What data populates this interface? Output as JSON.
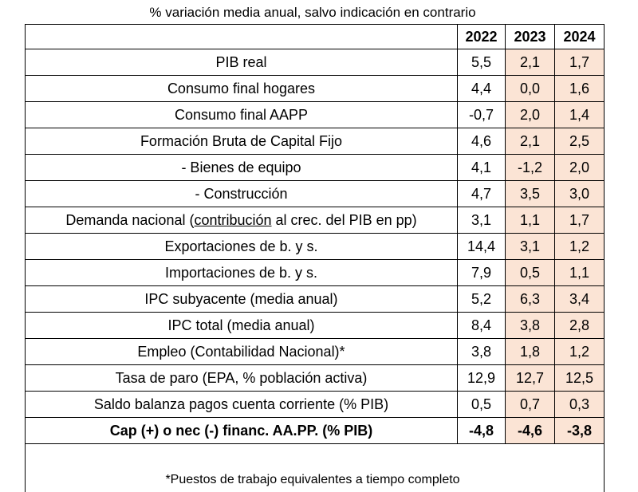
{
  "caption": "% variación media anual, salvo indicación en contrario",
  "columns": [
    "2022",
    "2023",
    "2024"
  ],
  "rows": [
    {
      "label": "PIB real",
      "values": [
        "5,5",
        "2,1",
        "1,7"
      ]
    },
    {
      "label": "Consumo final hogares",
      "values": [
        "4,4",
        "0,0",
        "1,6"
      ]
    },
    {
      "label": "Consumo final AAPP",
      "values": [
        "-0,7",
        "2,0",
        "1,4"
      ]
    },
    {
      "label": "Formación Bruta de Capital Fijo",
      "values": [
        "4,6",
        "2,1",
        "2,5"
      ]
    },
    {
      "label": "- Bienes de equipo",
      "values": [
        "4,1",
        "-1,2",
        "2,0"
      ]
    },
    {
      "label": "- Construcción",
      "values": [
        "4,7",
        "3,5",
        "3,0"
      ]
    },
    {
      "label_prefix": "Demanda nacional (",
      "label_underlined": "contribución",
      "label_suffix": " al crec. del PIB en pp)",
      "values": [
        "3,1",
        "1,1",
        "1,7"
      ]
    },
    {
      "label": "Exportaciones de b. y s.",
      "values": [
        "14,4",
        "3,1",
        "1,2"
      ]
    },
    {
      "label": "Importaciones de b. y s.",
      "values": [
        "7,9",
        "0,5",
        "1,1"
      ]
    },
    {
      "label": "IPC subyacente (media anual)",
      "values": [
        "5,2",
        "6,3",
        "3,4"
      ]
    },
    {
      "label": "IPC total (media anual)",
      "values": [
        "8,4",
        "3,8",
        "2,8"
      ]
    },
    {
      "label": "Empleo (Contabilidad Nacional)*",
      "values": [
        "3,8",
        "1,8",
        "1,2"
      ]
    },
    {
      "label": "Tasa de paro (EPA, % población activa)",
      "values": [
        "12,9",
        "12,7",
        "12,5"
      ]
    },
    {
      "label": "Saldo balanza pagos cuenta corriente (% PIB)",
      "values": [
        "0,5",
        "0,7",
        "0,3"
      ]
    },
    {
      "label": "Cap (+) o nec (-) financ. AA.PP. (% PIB)",
      "values": [
        "-4,8",
        "-4,6",
        "-3,8"
      ]
    }
  ],
  "footnote": "*Puestos de trabajo equivalentes a tiempo completo",
  "colors": {
    "forecast_fill": "#fbe4d5",
    "border": "#000000"
  }
}
